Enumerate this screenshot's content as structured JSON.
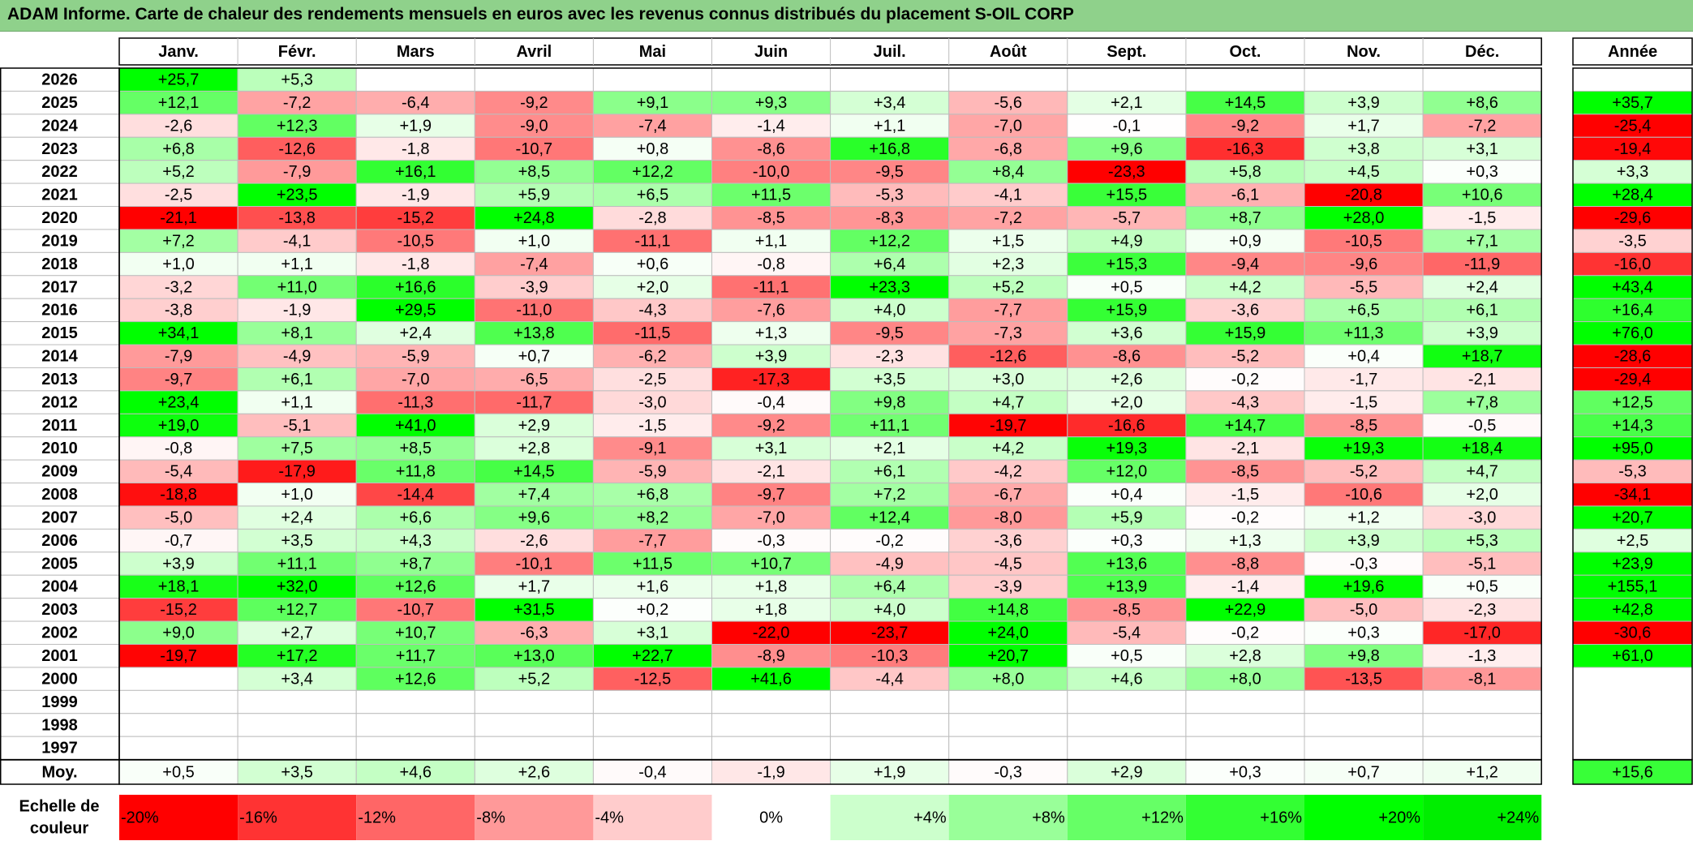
{
  "title": "ADAM Informe. Carte de chaleur des rendements mensuels en euros avec les revenus connus distribués du placement S-OIL CORP",
  "chart_data": {
    "type": "heatmap",
    "title": "ADAM Informe. Carte de chaleur des rendements mensuels en euros avec les revenus connus distribués du placement S-OIL CORP",
    "months": [
      "Janv.",
      "Févr.",
      "Mars",
      "Avril",
      "Mai",
      "Juin",
      "Juil.",
      "Août",
      "Sept.",
      "Oct.",
      "Nov.",
      "Déc."
    ],
    "annual_header": "Année",
    "rows": [
      {
        "year": "2026",
        "values": [
          25.7,
          5.3,
          null,
          null,
          null,
          null,
          null,
          null,
          null,
          null,
          null,
          null
        ],
        "annual": null
      },
      {
        "year": "2025",
        "values": [
          12.1,
          -7.2,
          -6.4,
          -9.2,
          9.1,
          9.3,
          3.4,
          -5.6,
          2.1,
          14.5,
          3.9,
          8.6
        ],
        "annual": 35.7
      },
      {
        "year": "2024",
        "values": [
          -2.6,
          12.3,
          1.9,
          -9.0,
          -7.4,
          -1.4,
          1.1,
          -7.0,
          -0.1,
          -9.2,
          1.7,
          -7.2
        ],
        "annual": -25.4
      },
      {
        "year": "2023",
        "values": [
          6.8,
          -12.6,
          -1.8,
          -10.7,
          0.8,
          -8.6,
          16.8,
          -6.8,
          9.6,
          -16.3,
          3.8,
          3.1
        ],
        "annual": -19.4
      },
      {
        "year": "2022",
        "values": [
          5.2,
          -7.9,
          16.1,
          8.5,
          12.2,
          -10.0,
          -9.5,
          8.4,
          -23.3,
          5.8,
          4.5,
          0.3
        ],
        "annual": 3.3
      },
      {
        "year": "2021",
        "values": [
          -2.5,
          23.5,
          -1.9,
          5.9,
          6.5,
          11.5,
          -5.3,
          -4.1,
          15.5,
          -6.1,
          -20.8,
          10.6
        ],
        "annual": 28.4
      },
      {
        "year": "2020",
        "values": [
          -21.1,
          -13.8,
          -15.2,
          24.8,
          -2.8,
          -8.5,
          -8.3,
          -7.2,
          -5.7,
          8.7,
          28.0,
          -1.5
        ],
        "annual": -29.6
      },
      {
        "year": "2019",
        "values": [
          7.2,
          -4.1,
          -10.5,
          1.0,
          -11.1,
          1.1,
          12.2,
          1.5,
          4.9,
          0.9,
          -10.5,
          7.1
        ],
        "annual": -3.5
      },
      {
        "year": "2018",
        "values": [
          1.0,
          1.1,
          -1.8,
          -7.4,
          0.6,
          -0.8,
          6.4,
          2.3,
          15.3,
          -9.4,
          -9.6,
          -11.9
        ],
        "annual": -16.0
      },
      {
        "year": "2017",
        "values": [
          -3.2,
          11.0,
          16.6,
          -3.9,
          2.0,
          -11.1,
          23.3,
          5.2,
          0.5,
          4.2,
          -5.5,
          2.4
        ],
        "annual": 43.4
      },
      {
        "year": "2016",
        "values": [
          -3.8,
          -1.9,
          29.5,
          -11.0,
          -4.3,
          -7.6,
          4.0,
          -7.7,
          15.9,
          -3.6,
          6.5,
          6.1
        ],
        "annual": 16.4
      },
      {
        "year": "2015",
        "values": [
          34.1,
          8.1,
          2.4,
          13.8,
          -11.5,
          1.3,
          -9.5,
          -7.3,
          3.6,
          15.9,
          11.3,
          3.9
        ],
        "annual": 76.0
      },
      {
        "year": "2014",
        "values": [
          -7.9,
          -4.9,
          -5.9,
          0.7,
          -6.2,
          3.9,
          -2.3,
          -12.6,
          -8.6,
          -5.2,
          0.4,
          18.7
        ],
        "annual": -28.6
      },
      {
        "year": "2013",
        "values": [
          -9.7,
          6.1,
          -7.0,
          -6.5,
          -2.5,
          -17.3,
          3.5,
          3.0,
          2.6,
          -0.2,
          -1.7,
          -2.1
        ],
        "annual": -29.4
      },
      {
        "year": "2012",
        "values": [
          23.4,
          1.1,
          -11.3,
          -11.7,
          -3.0,
          -0.4,
          9.8,
          4.7,
          2.0,
          -4.3,
          -1.5,
          7.8
        ],
        "annual": 12.5
      },
      {
        "year": "2011",
        "values": [
          19.0,
          -5.1,
          41.0,
          2.9,
          -1.5,
          -9.2,
          11.1,
          -19.7,
          -16.6,
          14.7,
          -8.5,
          -0.5
        ],
        "annual": 14.3
      },
      {
        "year": "2010",
        "values": [
          -0.8,
          7.5,
          8.5,
          2.8,
          -9.1,
          3.1,
          2.1,
          4.2,
          19.3,
          -2.1,
          19.3,
          18.4
        ],
        "annual": 95.0
      },
      {
        "year": "2009",
        "values": [
          -5.4,
          -17.9,
          11.8,
          14.5,
          -5.9,
          -2.1,
          6.1,
          -4.2,
          12.0,
          -8.5,
          -5.2,
          4.7
        ],
        "annual": -5.3
      },
      {
        "year": "2008",
        "values": [
          -18.8,
          1.0,
          -14.4,
          7.4,
          6.8,
          -9.7,
          7.2,
          -6.7,
          0.4,
          -1.5,
          -10.6,
          2.0
        ],
        "annual": -34.1
      },
      {
        "year": "2007",
        "values": [
          -5.0,
          2.4,
          6.6,
          9.6,
          8.2,
          -7.0,
          12.4,
          -8.0,
          5.9,
          -0.2,
          1.2,
          -3.0
        ],
        "annual": 20.7
      },
      {
        "year": "2006",
        "values": [
          -0.7,
          3.5,
          4.3,
          -2.6,
          -7.7,
          -0.3,
          -0.2,
          -3.6,
          0.3,
          1.3,
          3.9,
          5.3
        ],
        "annual": 2.5
      },
      {
        "year": "2005",
        "values": [
          3.9,
          11.1,
          8.7,
          -10.1,
          11.5,
          10.7,
          -4.9,
          -4.5,
          13.6,
          -8.8,
          -0.3,
          -5.1
        ],
        "annual": 23.9
      },
      {
        "year": "2004",
        "values": [
          18.1,
          32.0,
          12.6,
          1.7,
          1.6,
          1.8,
          6.4,
          -3.9,
          13.9,
          -1.4,
          19.6,
          0.5
        ],
        "annual": 155.1
      },
      {
        "year": "2003",
        "values": [
          -15.2,
          12.7,
          -10.7,
          31.5,
          0.2,
          1.8,
          4.0,
          14.8,
          -8.5,
          22.9,
          -5.0,
          -2.3
        ],
        "annual": 42.8
      },
      {
        "year": "2002",
        "values": [
          9.0,
          2.7,
          10.7,
          -6.3,
          3.1,
          -22.0,
          -23.7,
          24.0,
          -5.4,
          -0.2,
          0.3,
          -17.0
        ],
        "annual": -30.6
      },
      {
        "year": "2001",
        "values": [
          -19.7,
          17.2,
          11.7,
          13.0,
          22.7,
          -8.9,
          -10.3,
          20.7,
          0.5,
          2.8,
          9.8,
          -1.3
        ],
        "annual": 61.0
      },
      {
        "year": "2000",
        "values": [
          null,
          3.4,
          12.6,
          5.2,
          -12.5,
          41.6,
          -4.4,
          8.0,
          4.6,
          8.0,
          -13.5,
          -8.1
        ],
        "annual": null
      },
      {
        "year": "1999",
        "values": [
          null,
          null,
          null,
          null,
          null,
          null,
          null,
          null,
          null,
          null,
          null,
          null
        ],
        "annual": null
      },
      {
        "year": "1998",
        "values": [
          null,
          null,
          null,
          null,
          null,
          null,
          null,
          null,
          null,
          null,
          null,
          null
        ],
        "annual": null
      },
      {
        "year": "1997",
        "values": [
          null,
          null,
          null,
          null,
          null,
          null,
          null,
          null,
          null,
          null,
          null,
          null
        ],
        "annual": null
      }
    ],
    "average": {
      "label": "Moy.",
      "values": [
        0.5,
        3.5,
        4.6,
        2.6,
        -0.4,
        -1.9,
        1.9,
        -0.3,
        2.9,
        0.3,
        0.7,
        1.2
      ],
      "annual": 15.6
    },
    "scale": {
      "label_line1": "Echelle de",
      "label_line2": "couleur",
      "steps": [
        {
          "label": "-20%",
          "value": -20,
          "color": "#ff0000"
        },
        {
          "label": "-16%",
          "value": -16,
          "color": "#ff3333"
        },
        {
          "label": "-12%",
          "value": -12,
          "color": "#ff6666"
        },
        {
          "label": "-8%",
          "value": -8,
          "color": "#ff9999"
        },
        {
          "label": "-4%",
          "value": -4,
          "color": "#ffcccc"
        },
        {
          "label": "0%",
          "value": 0,
          "color": "#ffffff"
        },
        {
          "label": "+4%",
          "value": 4,
          "color": "#ccffcc"
        },
        {
          "label": "+8%",
          "value": 8,
          "color": "#99ff99"
        },
        {
          "label": "+12%",
          "value": 12,
          "color": "#66ff66"
        },
        {
          "label": "+16%",
          "value": 16,
          "color": "#33ff33"
        },
        {
          "label": "+20%",
          "value": 20,
          "color": "#00ff00"
        },
        {
          "label": "+24%",
          "value": 24,
          "color": "#00ee00"
        }
      ]
    }
  }
}
